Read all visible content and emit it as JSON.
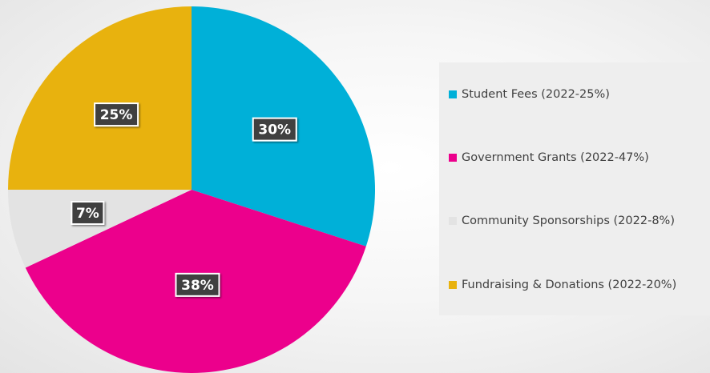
{
  "chart_data": {
    "type": "pie",
    "title": "",
    "categories": [
      "Student Fees (2022-25%)",
      "Government Grants (2022-47%)",
      "Community Sponsorships (2022-8%)",
      "Fundraising & Donations (2022-20%)"
    ],
    "values": [
      30,
      38,
      7,
      25
    ],
    "data_labels": [
      "30%",
      "38%",
      "7%",
      "25%"
    ],
    "colors": [
      "#00b0d8",
      "#ec008c",
      "#e3e3e3",
      "#e8b20e"
    ],
    "start_angle_deg": 0,
    "direction": "clockwise",
    "legend_position": "right"
  }
}
